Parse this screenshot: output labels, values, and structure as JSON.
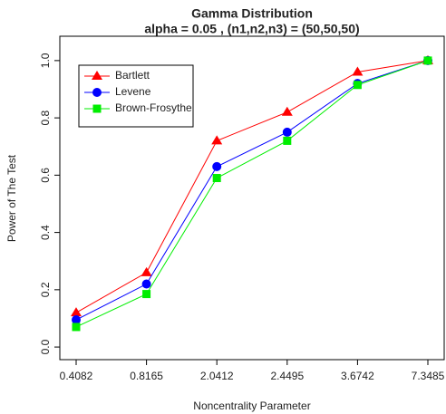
{
  "chart_data": {
    "type": "line",
    "title": "Gamma Distribution",
    "subtitle": "alpha = 0.05 , (n1,n2,n3) = (50,50,50)",
    "x_label": "Noncentrality Parameter",
    "y_label": "Power of The Test",
    "categories": [
      "0.4082",
      "0.8165",
      "2.0412",
      "2.4495",
      "3.6742",
      "7.3485"
    ],
    "series": [
      {
        "name": "Bartlett",
        "color": "#ff0000",
        "marker": "triangle",
        "values": [
          0.12,
          0.26,
          0.72,
          0.82,
          0.96,
          1.0
        ]
      },
      {
        "name": "Levene",
        "color": "#0000ff",
        "marker": "circle",
        "values": [
          0.095,
          0.22,
          0.63,
          0.75,
          0.92,
          1.0
        ]
      },
      {
        "name": "Brown-Frosythe",
        "color": "#00ee00",
        "marker": "square",
        "values": [
          0.07,
          0.185,
          0.59,
          0.72,
          0.915,
          1.0
        ]
      }
    ],
    "ylim": [
      -0.044,
      1.085
    ],
    "yticks": [
      {
        "value": 0,
        "label": "0.0"
      },
      0.2,
      0.4,
      0.6,
      0.8,
      {
        "value": 1,
        "label": "1.0"
      }
    ],
    "legend": "top-left"
  }
}
